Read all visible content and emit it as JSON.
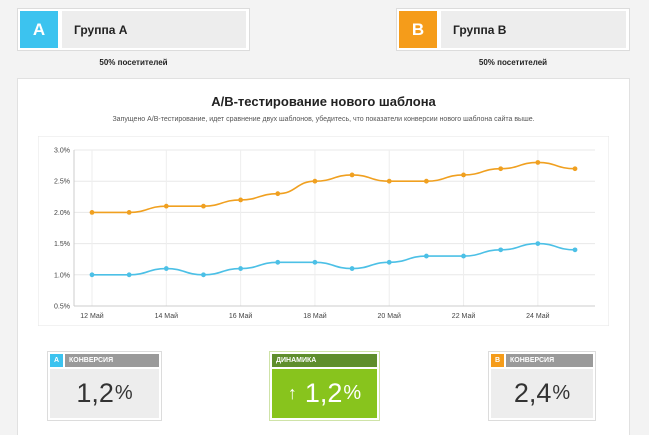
{
  "groups": {
    "a": {
      "badge": "A",
      "name": "Группа А",
      "share": "50% посетителей",
      "color": "#3cc3ef"
    },
    "b": {
      "badge": "B",
      "name": "Группа B",
      "share": "50% посетителей",
      "color": "#f59c1a"
    }
  },
  "panel": {
    "title": "А/B-тестирование нового шаблона",
    "subtitle": "Запущено А/B-тестирование, идет сравнение двух шаблонов, убедитесь, что показатели конверсии нового шаблона сайта выше."
  },
  "chart_data": {
    "type": "line",
    "x": [
      "12 Май",
      "13 Май",
      "14 Май",
      "15 Май",
      "16 Май",
      "17 Май",
      "18 Май",
      "19 Май",
      "20 Май",
      "21 Май",
      "22 Май",
      "23 Май",
      "24 Май",
      "25 Май"
    ],
    "x_tick_labels": [
      "12 Май",
      "14 Май",
      "16 Май",
      "18 Май",
      "20 Май",
      "22 Май",
      "24 Май"
    ],
    "y_tick_labels": [
      "0.5%",
      "1.0%",
      "1.5%",
      "2.0%",
      "2.5%",
      "3.0%"
    ],
    "ylim": [
      0.5,
      3.0
    ],
    "grid": true,
    "series": [
      {
        "color": "#f0a020",
        "values": [
          2.0,
          2.0,
          2.1,
          2.1,
          2.2,
          2.3,
          2.5,
          2.6,
          2.5,
          2.5,
          2.6,
          2.7,
          2.8,
          2.7
        ]
      },
      {
        "color": "#4cc0e6",
        "values": [
          1.0,
          1.0,
          1.1,
          1.0,
          1.1,
          1.2,
          1.2,
          1.1,
          1.2,
          1.3,
          1.3,
          1.4,
          1.5,
          1.4
        ]
      }
    ]
  },
  "tiles": {
    "a": {
      "letter": "A",
      "label": "КОНВЕРСИЯ",
      "value": "1,2",
      "unit": "%",
      "color": "#3cc3ef"
    },
    "dynamics": {
      "label": "ДИНАМИКА",
      "arrow": "↑",
      "value": "1,2",
      "unit": "%"
    },
    "b": {
      "letter": "B",
      "label": "КОНВЕРСИЯ",
      "value": "2,4",
      "unit": "%",
      "color": "#f59c1a"
    }
  }
}
